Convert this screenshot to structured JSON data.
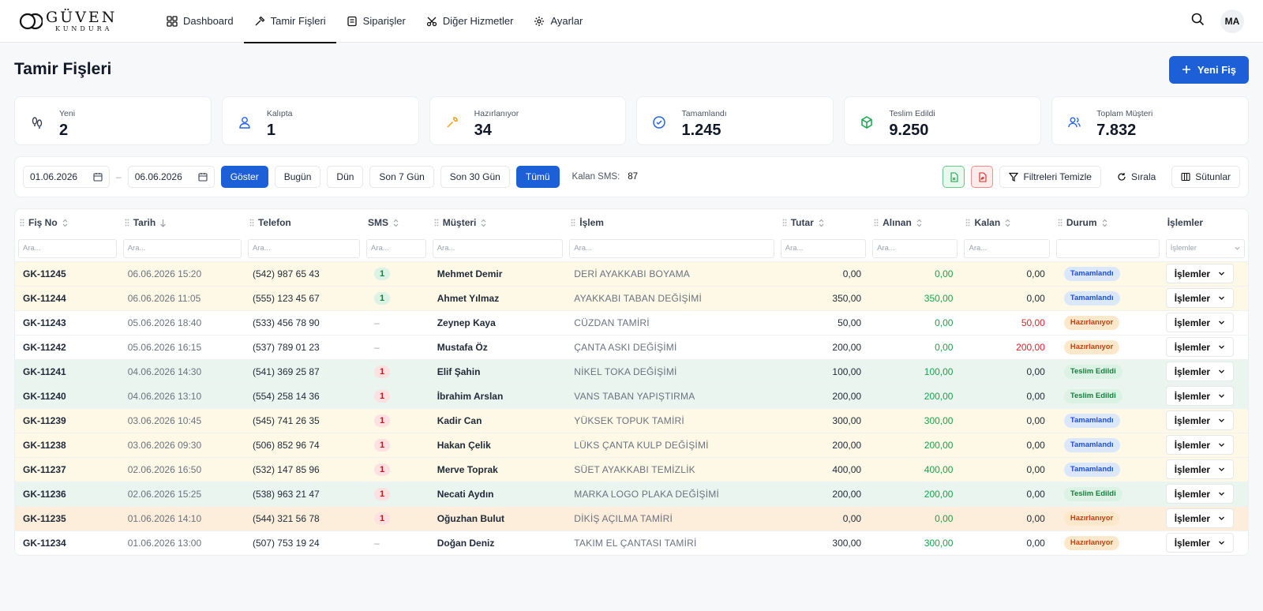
{
  "brand": {
    "name": "GÜVEN",
    "sub": "KUNDURA"
  },
  "nav": [
    {
      "label": "Dashboard",
      "icon": "grid-icon"
    },
    {
      "label": "Tamir Fişleri",
      "icon": "hammer-icon",
      "active": true
    },
    {
      "label": "Siparişler",
      "icon": "receipt-icon"
    },
    {
      "label": "Diğer Hizmetler",
      "icon": "scissors-icon"
    },
    {
      "label": "Ayarlar",
      "icon": "gear-icon"
    }
  ],
  "user": {
    "initials": "MA"
  },
  "page": {
    "title": "Tamir Fişleri",
    "new_button": "Yeni Fiş"
  },
  "stats": [
    {
      "label": "Yeni",
      "value": "2",
      "icon": "shoe-print-icon",
      "color": "#374151"
    },
    {
      "label": "Kalıpta",
      "value": "1",
      "icon": "person-icon",
      "color": "#2563eb"
    },
    {
      "label": "Hazırlanıyor",
      "value": "34",
      "icon": "wrench-icon",
      "color": "#f59e0b"
    },
    {
      "label": "Tamamlandı",
      "value": "1.245",
      "icon": "check-circle-icon",
      "color": "#2563eb"
    },
    {
      "label": "Teslim Edildi",
      "value": "9.250",
      "icon": "box-icon",
      "color": "#16a34a"
    },
    {
      "label": "Toplam Müşteri",
      "value": "7.832",
      "icon": "users-icon",
      "color": "#2563eb"
    }
  ],
  "filters": {
    "date_from": "01.06.2026",
    "date_to": "06.06.2026",
    "show": "Göster",
    "today": "Bugün",
    "yesterday": "Dün",
    "last7": "Son 7 Gün",
    "last30": "Son 30 Gün",
    "all": "Tümü",
    "sms_label": "Kalan SMS:",
    "sms_value": "87",
    "clear": "Filtreleri Temizle",
    "sort": "Sırala",
    "columns": "Sütunlar"
  },
  "table": {
    "headers": [
      "Fiş No",
      "Tarih",
      "Telefon",
      "SMS",
      "Müşteri",
      "İşlem",
      "Tutar",
      "Alınan",
      "Kalan",
      "Durum",
      "İşlemler"
    ],
    "search_placeholder": "Ara...",
    "actions_placeholder": "İşlemler",
    "action_label": "İşlemler",
    "rows": [
      {
        "fis": "GK-11245",
        "tarih": "06.06.2026 15:20",
        "tel": "(542) 987 65 43",
        "sms": "1",
        "sms_type": "g",
        "musteri": "Mehmet Demir",
        "islem": "DERİ AYAKKABI BOYAMA",
        "tutar": "0,00",
        "alinan": "0,00",
        "kalan": "0,00",
        "durum": "Tamamlandı",
        "st": "tam",
        "bg": "yellow"
      },
      {
        "fis": "GK-11244",
        "tarih": "06.06.2026 11:05",
        "tel": "(555) 123 45 67",
        "sms": "1",
        "sms_type": "g",
        "musteri": "Ahmet Yılmaz",
        "islem": "AYAKKABI TABAN DEĞİŞİMİ",
        "tutar": "350,00",
        "alinan": "350,00",
        "kalan": "0,00",
        "durum": "Tamamlandı",
        "st": "tam",
        "bg": "yellow"
      },
      {
        "fis": "GK-11243",
        "tarih": "05.06.2026 18:40",
        "tel": "(533) 456 78 90",
        "sms": "–",
        "sms_type": "n",
        "musteri": "Zeynep Kaya",
        "islem": "CÜZDAN TAMİRİ",
        "tutar": "50,00",
        "alinan": "0,00",
        "kalan": "50,00",
        "durum": "Hazırlanıyor",
        "st": "haz",
        "bg": "white"
      },
      {
        "fis": "GK-11242",
        "tarih": "05.06.2026 16:15",
        "tel": "(537) 789 01 23",
        "sms": "–",
        "sms_type": "n",
        "musteri": "Mustafa Öz",
        "islem": "ÇANTA ASKI DEĞİŞİMİ",
        "tutar": "200,00",
        "alinan": "0,00",
        "kalan": "200,00",
        "durum": "Hazırlanıyor",
        "st": "haz",
        "bg": "white"
      },
      {
        "fis": "GK-11241",
        "tarih": "04.06.2026 14:30",
        "tel": "(541) 369 25 87",
        "sms": "1",
        "sms_type": "r",
        "musteri": "Elif Şahin",
        "islem": "NİKEL TOKA DEĞİŞİMİ",
        "tutar": "100,00",
        "alinan": "100,00",
        "kalan": "0,00",
        "durum": "Teslim Edildi",
        "st": "tes",
        "bg": "green"
      },
      {
        "fis": "GK-11240",
        "tarih": "04.06.2026 13:10",
        "tel": "(554) 258 14 36",
        "sms": "1",
        "sms_type": "r",
        "musteri": "İbrahim Arslan",
        "islem": "VANS TABAN YAPIŞTIRMA",
        "tutar": "200,00",
        "alinan": "200,00",
        "kalan": "0,00",
        "durum": "Teslim Edildi",
        "st": "tes",
        "bg": "green"
      },
      {
        "fis": "GK-11239",
        "tarih": "03.06.2026 10:45",
        "tel": "(545) 741 26 35",
        "sms": "1",
        "sms_type": "r",
        "musteri": "Kadir Can",
        "islem": "YÜKSEK TOPUK TAMİRİ",
        "tutar": "300,00",
        "alinan": "300,00",
        "kalan": "0,00",
        "durum": "Tamamlandı",
        "st": "tam",
        "bg": "yellow"
      },
      {
        "fis": "GK-11238",
        "tarih": "03.06.2026 09:30",
        "tel": "(506) 852 96 74",
        "sms": "1",
        "sms_type": "r",
        "musteri": "Hakan Çelik",
        "islem": "LÜKS ÇANTA KULP DEĞİŞİMİ",
        "tutar": "200,00",
        "alinan": "200,00",
        "kalan": "0,00",
        "durum": "Tamamlandı",
        "st": "tam",
        "bg": "yellow"
      },
      {
        "fis": "GK-11237",
        "tarih": "02.06.2026 16:50",
        "tel": "(532) 147 85 96",
        "sms": "1",
        "sms_type": "r",
        "musteri": "Merve Toprak",
        "islem": "SÜET AYAKKABI TEMİZLİK",
        "tutar": "400,00",
        "alinan": "400,00",
        "kalan": "0,00",
        "durum": "Tamamlandı",
        "st": "tam",
        "bg": "yellow"
      },
      {
        "fis": "GK-11236",
        "tarih": "02.06.2026 15:25",
        "tel": "(538) 963 21 47",
        "sms": "1",
        "sms_type": "r",
        "musteri": "Necati Aydın",
        "islem": "MARKA LOGO PLAKA DEĞİŞİMİ",
        "tutar": "200,00",
        "alinan": "200,00",
        "kalan": "0,00",
        "durum": "Teslim Edildi",
        "st": "tes",
        "bg": "green"
      },
      {
        "fis": "GK-11235",
        "tarih": "01.06.2026 14:10",
        "tel": "(544) 321 56 78",
        "sms": "1",
        "sms_type": "r",
        "musteri": "Oğuzhan Bulut",
        "islem": "DİKİŞ AÇILMA TAMİRİ",
        "tutar": "0,00",
        "alinan": "0,00",
        "kalan": "0,00",
        "durum": "Hazırlanıyor",
        "st": "haz",
        "bg": "orange"
      },
      {
        "fis": "GK-11234",
        "tarih": "01.06.2026 13:00",
        "tel": "(507) 753 19 24",
        "sms": "–",
        "sms_type": "n",
        "musteri": "Doğan Deniz",
        "islem": "TAKIM EL ÇANTASI TAMİRİ",
        "tutar": "300,00",
        "alinan": "300,00",
        "kalan": "0,00",
        "durum": "Hazırlanıyor",
        "st": "haz",
        "bg": "white"
      }
    ]
  }
}
